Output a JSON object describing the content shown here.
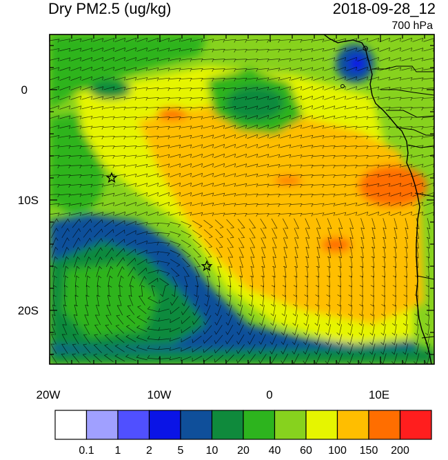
{
  "title": "Dry PM2.5 (ug/kg)",
  "datetime": "2018-09-28_12",
  "level": "700 hPa",
  "axes": {
    "lon_ticks": [
      "20W",
      "10W",
      "0",
      "10E"
    ],
    "lat_ticks": [
      "0",
      "10S",
      "20S"
    ]
  },
  "colorbar": {
    "labels": [
      "0.1",
      "1",
      "2",
      "5",
      "10",
      "20",
      "40",
      "60",
      "100",
      "150",
      "200"
    ],
    "colors": [
      "#ffffff",
      "#a0a0ff",
      "#5050ff",
      "#0a14e6",
      "#0f4f9a",
      "#0f8a3c",
      "#2db41e",
      "#87d21e",
      "#e6f500",
      "#ffbe00",
      "#ff6e00",
      "#ff1e1e"
    ]
  },
  "markers": [
    "star",
    "star"
  ],
  "palette": {
    "background": "#ffffff",
    "coast": "#000000"
  }
}
